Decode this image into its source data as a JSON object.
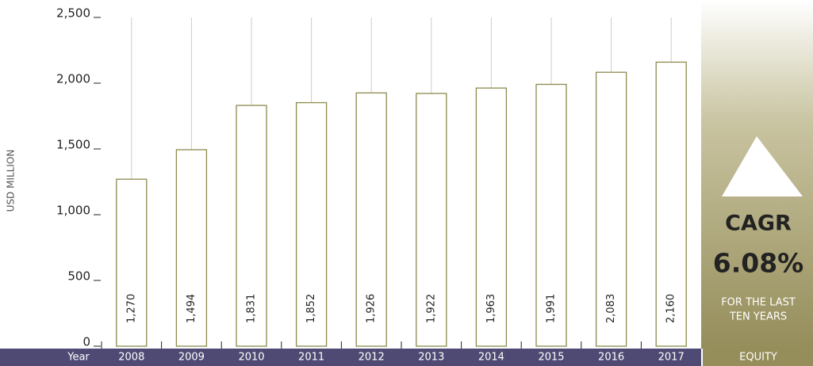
{
  "chart_data": {
    "type": "bar",
    "y_label": "USD MILLION",
    "x_label": "Year",
    "categories": [
      "2008",
      "2009",
      "2010",
      "2011",
      "2012",
      "2013",
      "2014",
      "2015",
      "2016",
      "2017"
    ],
    "values": [
      1270,
      1494,
      1831,
      1852,
      1926,
      1922,
      1963,
      1991,
      2083,
      2160
    ],
    "value_labels": [
      "1,270",
      "1,494",
      "1,831",
      "1,852",
      "1,926",
      "1,922",
      "1,963",
      "1,991",
      "2,083",
      "2,160"
    ],
    "color": "#8d8a4e",
    "ylim": [
      0,
      2500
    ],
    "yticks": [
      0,
      500,
      {
        "value": 1000,
        "label": "1,000"
      },
      {
        "value": 1500,
        "label": "1,500"
      },
      {
        "value": 2000,
        "label": "2,000"
      },
      {
        "value": 2500,
        "label": "2,500"
      }
    ],
    "panel": {
      "label": "CAGR",
      "rate": "6.08%",
      "note": [
        "FOR THE LAST",
        "TEN YEARS"
      ],
      "footer": "EQUITY"
    }
  }
}
